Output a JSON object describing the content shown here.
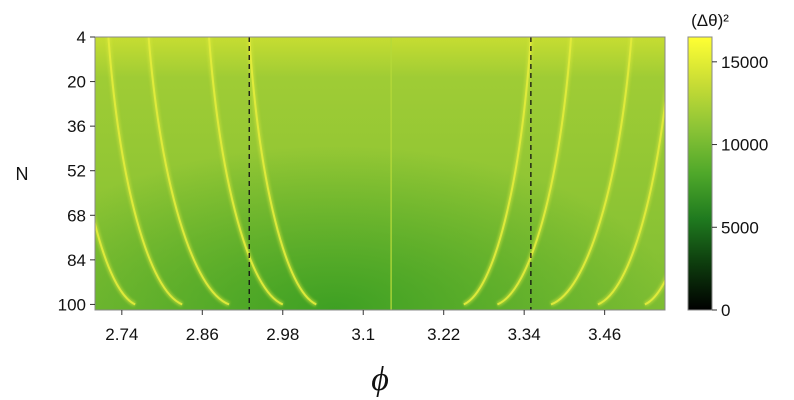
{
  "chart_data": {
    "type": "heatmap",
    "title": "",
    "xlabel": "ϕ",
    "ylabel": "N",
    "xlim": [
      2.7,
      3.55
    ],
    "ylim": [
      4,
      102
    ],
    "x_ticks": [
      2.74,
      2.86,
      2.98,
      3.1,
      3.22,
      3.34,
      3.46
    ],
    "x_tick_labels": [
      "2.74",
      "2.86",
      "2.98",
      "3.1",
      "3.22",
      "3.34",
      "3.46"
    ],
    "y_ticks": [
      4,
      20,
      36,
      52,
      68,
      84,
      100
    ],
    "y_tick_labels": [
      "4",
      "20",
      "36",
      "52",
      "68",
      "84",
      "100"
    ],
    "vertical_dashed_lines_x": [
      2.93,
      3.35
    ],
    "center_line_x": 3.14159,
    "colorbar": {
      "label": "(Δθ)²",
      "range": [
        0,
        16500
      ],
      "ticks": [
        0,
        5000,
        10000,
        15000
      ],
      "tick_labels": [
        "0",
        "5000",
        "10000",
        "15000"
      ],
      "colormap": [
        "#000000",
        "#0d3b0d",
        "#1f7a1f",
        "#4fa82a",
        "#8cc436",
        "#c9dd35",
        "#ffff33"
      ]
    },
    "background_values": {
      "top_edge": 14500,
      "center_bottom": 9000,
      "sides_bottom": 12500
    },
    "ridge_value": 16000,
    "ridges": {
      "left": [
        {
          "x_at_top": 2.93,
          "x_at_bottom": 3.03
        },
        {
          "x_at_top": 2.87,
          "x_at_bottom": 2.98
        },
        {
          "x_at_top": 2.78,
          "x_at_bottom": 2.9
        },
        {
          "x_at_top": 2.72,
          "x_at_bottom": 2.83
        },
        {
          "x_at_top": 2.66,
          "x_at_bottom": 2.76
        }
      ],
      "right": [
        {
          "x_at_top": 3.35,
          "x_at_bottom": 3.25
        },
        {
          "x_at_top": 3.41,
          "x_at_bottom": 3.3
        },
        {
          "x_at_top": 3.5,
          "x_at_bottom": 3.38
        },
        {
          "x_at_top": 3.56,
          "x_at_bottom": 3.45
        },
        {
          "x_at_top": 3.62,
          "x_at_bottom": 3.52
        }
      ]
    }
  }
}
